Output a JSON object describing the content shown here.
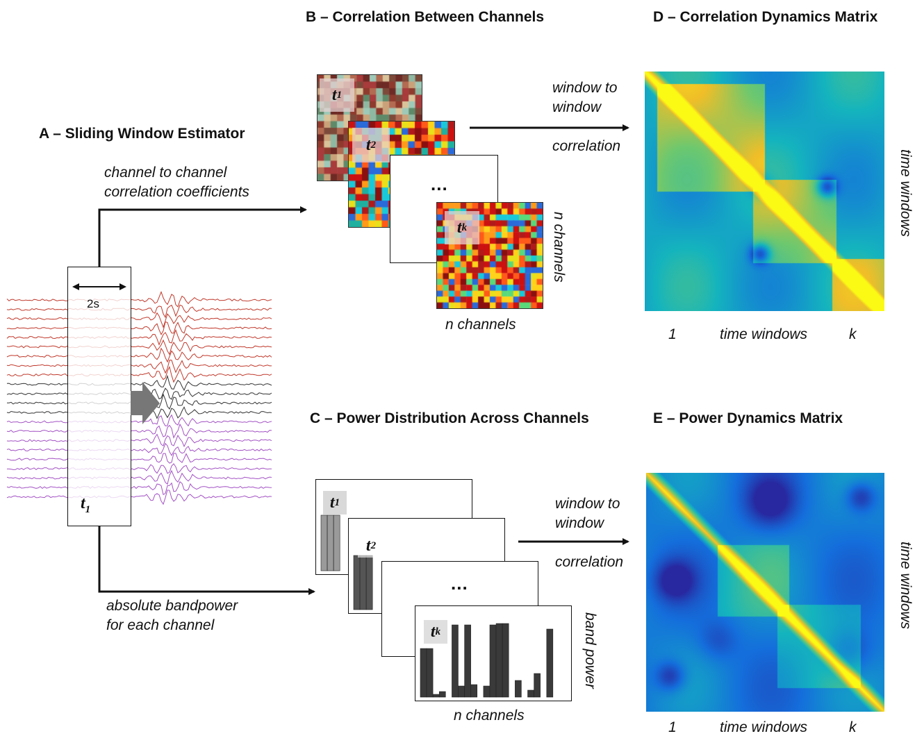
{
  "panels": {
    "a_title": "A – Sliding Window Estimator",
    "b_title": "B – Correlation Between Channels",
    "c_title": "C – Power  Distribution Across Channels",
    "d_title": "D – Correlation Dynamics Matrix",
    "e_title": "E – Power Dynamics Matrix"
  },
  "labels": {
    "window_width": "2s",
    "t1": "t",
    "t1_sub": "1",
    "t2": "t",
    "t2_sub": "2",
    "tk": "t",
    "tk_sub": "k",
    "ellipsis": "...",
    "channel_corr_line1": "channel to channel",
    "channel_corr_line2": "correlation coefficients",
    "bandpower_line1": "absolute bandpower",
    "bandpower_line2": "for each channel",
    "w2w_line1": "window to",
    "w2w_line2": "window",
    "w2w_line3": "correlation",
    "n_channels": "n channels",
    "band_power": "band power",
    "axis_1": "1",
    "axis_time_windows": "time windows",
    "axis_k": "k"
  },
  "colors": {
    "eeg_red": "#c0392b",
    "eeg_black": "#333333",
    "eeg_purple": "#a352c4",
    "arrow_gray": "#777777",
    "bar_light": "#9a9a9a",
    "bar_dark": "#333333"
  }
}
